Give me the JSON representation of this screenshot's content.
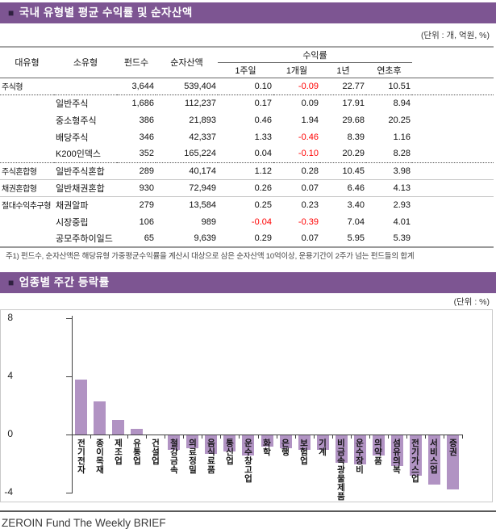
{
  "section1": {
    "bullet": "■",
    "title": "국내 유형별 평균 수익률 및 순자산액",
    "units": "(단위 : 개, 억원, %)"
  },
  "table": {
    "headers": {
      "col1": "대유형",
      "col2": "소유형",
      "col3": "펀드수",
      "col4": "순자산액",
      "group": "수익률",
      "sub": [
        "1주일",
        "1개월",
        "1년",
        "연초후"
      ]
    },
    "rows": [
      {
        "type": "주식형",
        "subtype": "",
        "funds": "3,644",
        "assets": "539,404",
        "r1w": "0.10",
        "r1m": "-0.09",
        "r1y": "22.77",
        "rytd": "10.51",
        "sep": "dotted"
      },
      {
        "type": "",
        "subtype": "일반주식",
        "funds": "1,686",
        "assets": "112,237",
        "r1w": "0.17",
        "r1m": "0.09",
        "r1y": "17.91",
        "rytd": "8.94",
        "sep": "none"
      },
      {
        "type": "",
        "subtype": "중소형주식",
        "funds": "386",
        "assets": "21,893",
        "r1w": "0.46",
        "r1m": "1.94",
        "r1y": "29.68",
        "rytd": "20.25",
        "sep": "none"
      },
      {
        "type": "",
        "subtype": "배당주식",
        "funds": "346",
        "assets": "42,337",
        "r1w": "1.33",
        "r1m": "-0.46",
        "r1y": "8.39",
        "rytd": "1.16",
        "sep": "none"
      },
      {
        "type": "",
        "subtype": "K200인덱스",
        "funds": "352",
        "assets": "165,224",
        "r1w": "0.04",
        "r1m": "-0.10",
        "r1y": "20.29",
        "rytd": "8.28",
        "sep": "dotted"
      },
      {
        "type": "주식혼합형",
        "subtype": "일반주식혼합",
        "funds": "289",
        "assets": "40,174",
        "r1w": "1.12",
        "r1m": "0.28",
        "r1y": "10.45",
        "rytd": "3.98",
        "sep": "solid"
      },
      {
        "type": "채권혼합형",
        "subtype": "일반채권혼합",
        "funds": "930",
        "assets": "72,949",
        "r1w": "0.26",
        "r1m": "0.07",
        "r1y": "6.46",
        "rytd": "4.13",
        "sep": "solid"
      },
      {
        "type": "절대수익추구형",
        "subtype": "채권알파",
        "funds": "279",
        "assets": "13,584",
        "r1w": "0.25",
        "r1m": "0.23",
        "r1y": "3.40",
        "rytd": "2.93",
        "sep": "none"
      },
      {
        "type": "",
        "subtype": "시장중립",
        "funds": "106",
        "assets": "989",
        "r1w": "-0.04",
        "r1m": "-0.39",
        "r1y": "7.04",
        "rytd": "4.01",
        "sep": "none"
      },
      {
        "type": "",
        "subtype": "공모주하이일드",
        "funds": "65",
        "assets": "9,639",
        "r1w": "0.29",
        "r1m": "0.07",
        "r1y": "5.95",
        "rytd": "5.39",
        "sep": "none"
      }
    ]
  },
  "footnote": "주1) 펀드수, 순자산액은 해당유형 가중평균수익률을 계산시 대상으로 삼은 순자산액 10억이상, 운용기간이 2주가 넘는 펀드들의 합계",
  "section2": {
    "bullet": "■",
    "title": "업종별 주간 등락률",
    "units": "(단위 : %)"
  },
  "chart_data": {
    "type": "bar",
    "title": "업종별 주간 등락률",
    "unit": "%",
    "categories": [
      "전기전자",
      "종이목재",
      "제조업",
      "유통업",
      "건설업",
      "철강금속",
      "의료정밀",
      "음식료품",
      "통신업",
      "운수창고업",
      "화학",
      "은행",
      "보험업",
      "기계",
      "비금속광물제품",
      "운수장비",
      "의약품",
      "섬유의복",
      "전기가스업",
      "서비스업",
      "증권"
    ],
    "values": [
      3.8,
      2.3,
      1.0,
      0.4,
      0.0,
      -1.0,
      -0.9,
      -1.3,
      -1.1,
      -1.4,
      -0.8,
      -0.9,
      -1.0,
      -1.0,
      -1.9,
      -2.0,
      -1.4,
      -2.1,
      -2.8,
      -3.4,
      -3.7
    ],
    "yticks": [
      8,
      4,
      0,
      -4
    ],
    "ylim": [
      -4,
      8
    ],
    "grid": false,
    "legend": false,
    "bar_color": "#B193C3"
  },
  "footer": "ZEROIN Fund The Weekly BRIEF",
  "colors": {
    "accent_purple": "#7D5592",
    "bar_purple": "#B193C3",
    "negative_red": "#FF0000"
  }
}
